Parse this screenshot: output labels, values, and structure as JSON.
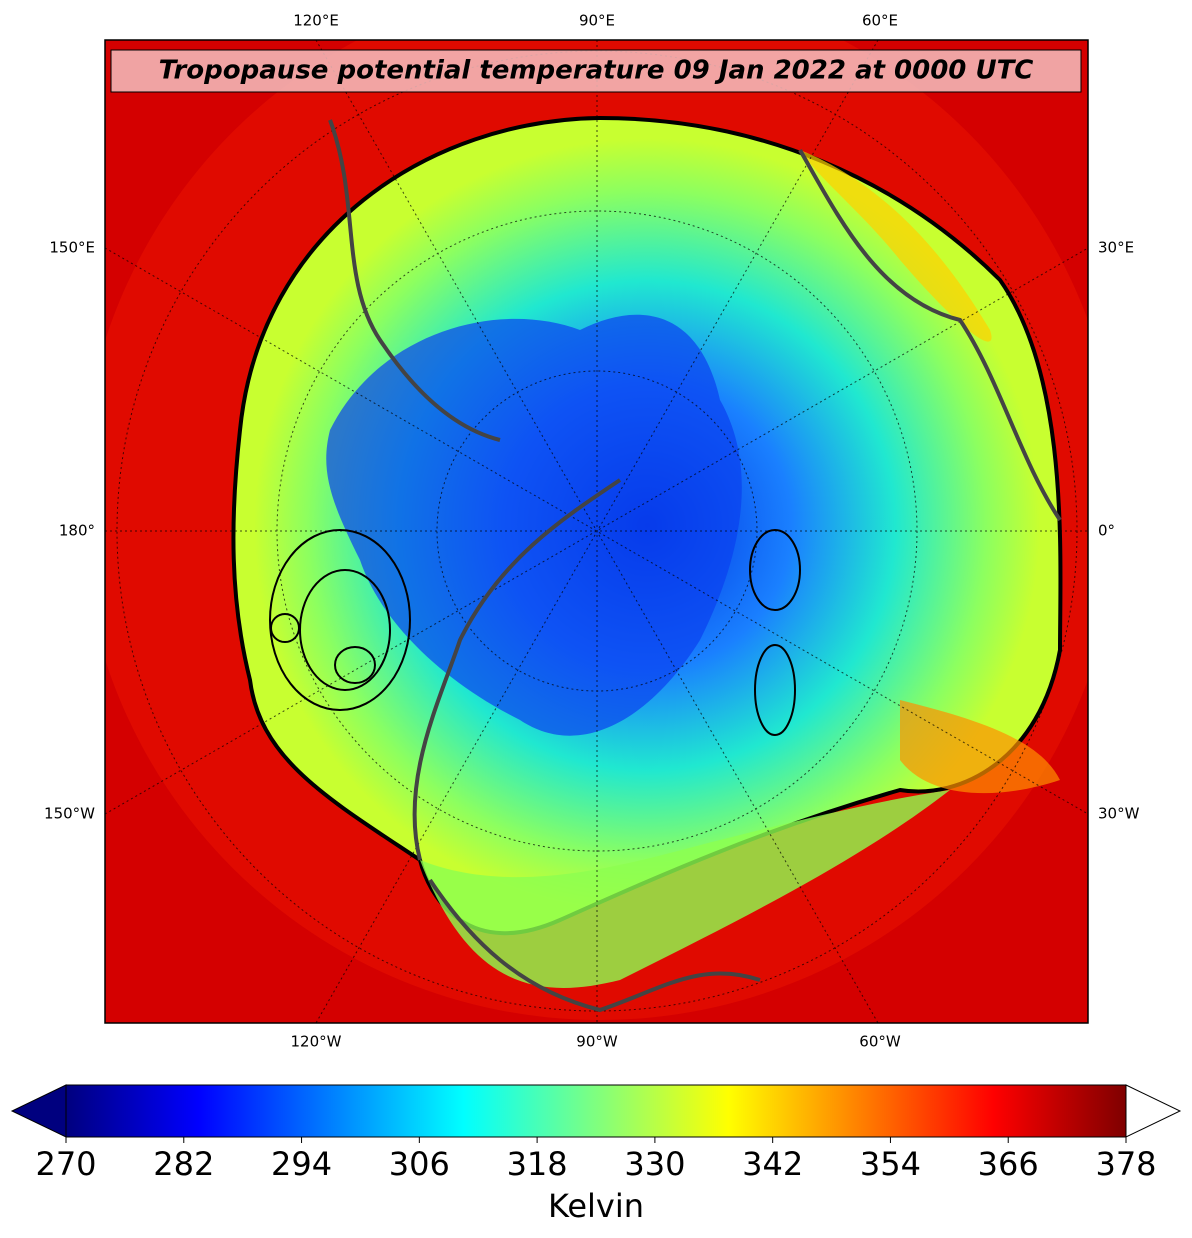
{
  "title": "Tropopause potential temperature 09 Jan 2022 at 0000 UTC",
  "map_labels": {
    "top": [
      "120°E",
      "90°E",
      "60°E"
    ],
    "bottom": [
      "120°W",
      "90°W",
      "60°W"
    ],
    "left": [
      "150°E",
      "180°",
      "150°W"
    ],
    "right": [
      "30°E",
      "0°",
      "30°W"
    ]
  },
  "colorbar": {
    "label": "Kelvin",
    "lim": [
      270,
      378
    ],
    "ticks": [
      270,
      282,
      294,
      306,
      318,
      330,
      342,
      354,
      366,
      378
    ],
    "colors": [
      "#00007f",
      "#0000ff",
      "#007fff",
      "#00ffff",
      "#7fff7f",
      "#ffff00",
      "#ff7f00",
      "#ff0000",
      "#7f0000"
    ],
    "extend_min_color": "#00007f",
    "extend_max_color": "#ffffff"
  }
}
